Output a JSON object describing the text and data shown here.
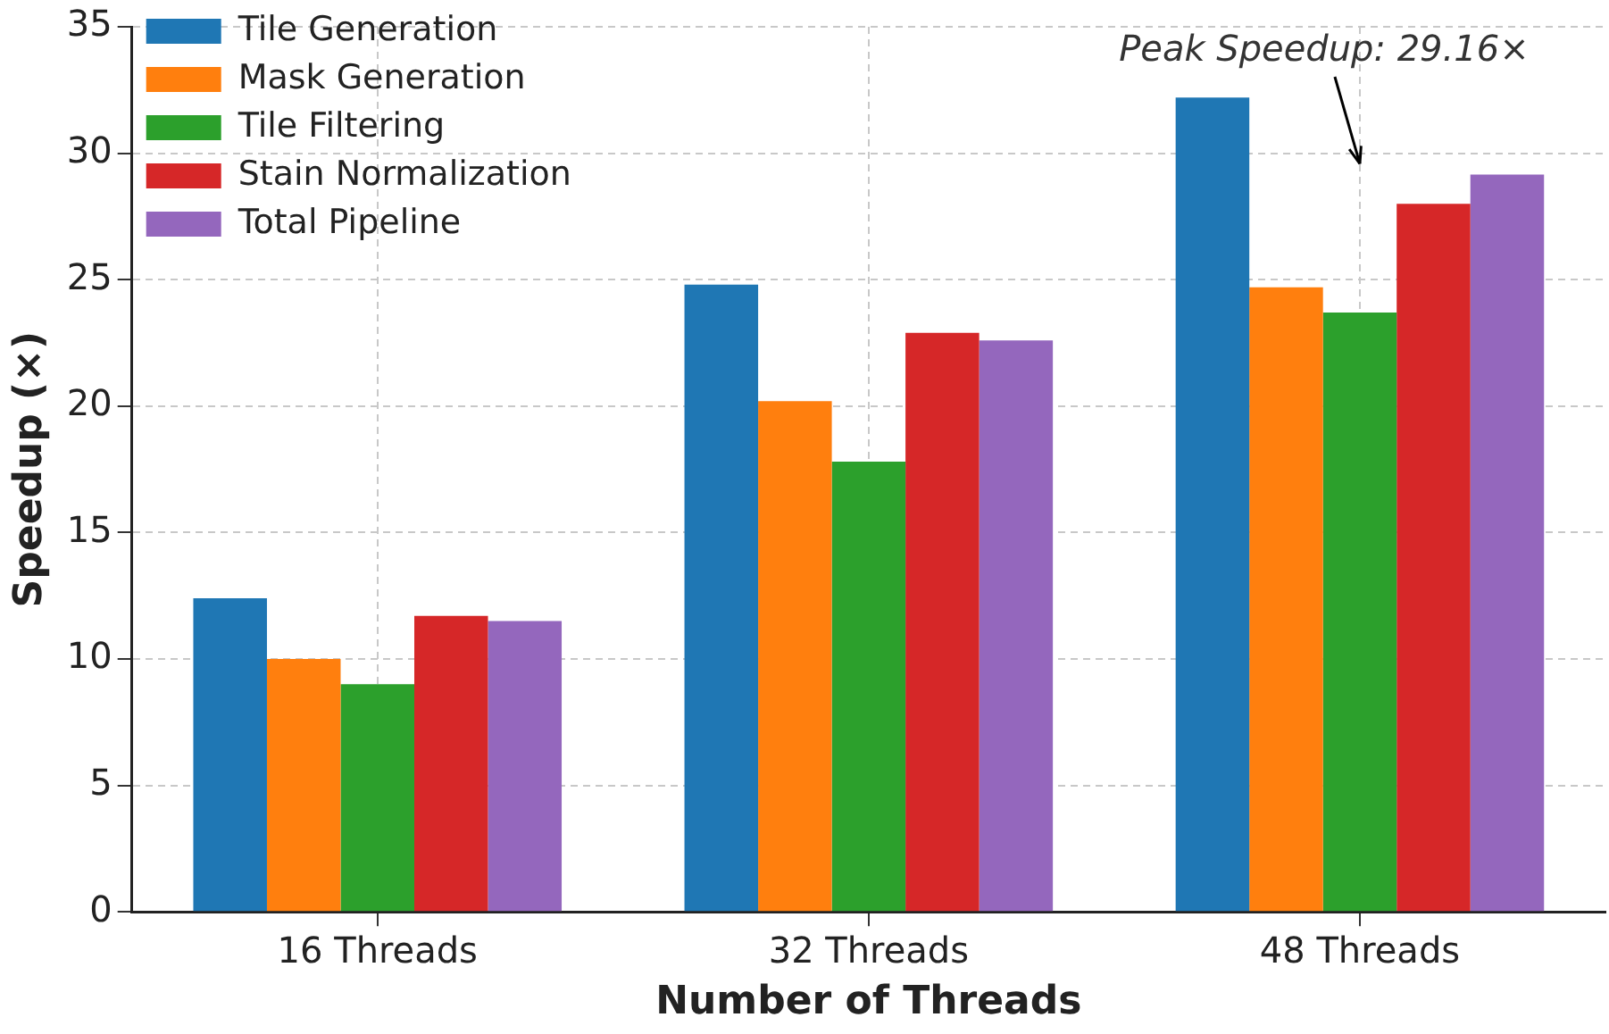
{
  "chart_data": {
    "type": "bar",
    "xlabel": "Number of Threads",
    "ylabel": "Speedup (×)",
    "categories": [
      "16 Threads",
      "32 Threads",
      "48 Threads"
    ],
    "series": [
      {
        "name": "Tile Generation",
        "color": "#1f77b4",
        "values": [
          12.4,
          24.8,
          32.2
        ]
      },
      {
        "name": "Mask Generation",
        "color": "#ff7f0e",
        "values": [
          10.0,
          20.2,
          24.7
        ]
      },
      {
        "name": "Tile Filtering",
        "color": "#2ca02c",
        "values": [
          9.0,
          17.8,
          23.7
        ]
      },
      {
        "name": "Stain Normalization",
        "color": "#d62728",
        "values": [
          11.7,
          22.9,
          28.0
        ]
      },
      {
        "name": "Total Pipeline",
        "color": "#9467bd",
        "values": [
          11.5,
          22.6,
          29.16
        ]
      }
    ],
    "ylim": [
      0,
      35
    ],
    "yticks": [
      0,
      5,
      10,
      15,
      20,
      25,
      30,
      35
    ],
    "grid": true,
    "legend": "top left",
    "annotations": [
      "Peak Speedup: 29.16×"
    ]
  }
}
